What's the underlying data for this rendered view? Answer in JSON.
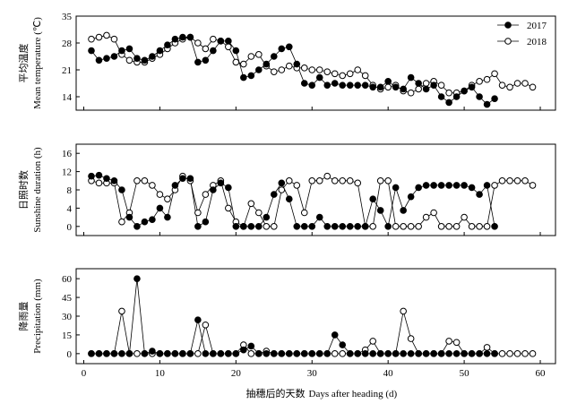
{
  "colors": {
    "ink": "#000000",
    "background": "#ffffff",
    "hollow": "#ffffff"
  },
  "chart_data": [
    {
      "type": "line",
      "ylabel_cn": "平均温度",
      "ylabel": "Mean temperature (℃)",
      "xlim": [
        -1,
        62
      ],
      "ylim": [
        10.5,
        35
      ],
      "xticks": [
        0,
        10,
        20,
        30,
        40,
        50,
        60
      ],
      "yticks": [
        14,
        21,
        28,
        35
      ],
      "legend": "top-right",
      "series": [
        {
          "name": "2017",
          "marker": "filled",
          "x": [
            1,
            2,
            3,
            4,
            5,
            6,
            7,
            8,
            9,
            10,
            11,
            12,
            13,
            14,
            15,
            16,
            17,
            18,
            19,
            20,
            21,
            22,
            23,
            24,
            25,
            26,
            27,
            28,
            29,
            30,
            31,
            32,
            33,
            34,
            35,
            36,
            37,
            38,
            39,
            40,
            41,
            42,
            43,
            44,
            45,
            46,
            47,
            48,
            49,
            50,
            51,
            52,
            53,
            54
          ],
          "y": [
            26,
            23.5,
            24,
            24.5,
            26,
            26.5,
            24,
            23.5,
            24.5,
            26,
            27.5,
            29,
            29.5,
            29.5,
            23,
            23.5,
            26,
            28.5,
            28.5,
            26,
            19,
            19.5,
            21,
            22.5,
            24.5,
            26.5,
            27,
            22.5,
            17.5,
            17,
            19,
            17,
            17.5,
            17,
            17,
            17,
            17,
            16.5,
            16.5,
            18,
            16.5,
            16,
            19,
            17.5,
            16,
            17,
            14,
            12.5,
            14,
            15.5,
            16.5,
            14,
            12,
            13.5
          ]
        },
        {
          "name": "2018",
          "marker": "hollow",
          "x": [
            1,
            2,
            3,
            4,
            5,
            6,
            7,
            8,
            9,
            10,
            11,
            12,
            13,
            14,
            15,
            16,
            17,
            18,
            19,
            20,
            21,
            22,
            23,
            24,
            25,
            26,
            27,
            28,
            29,
            30,
            31,
            32,
            33,
            34,
            35,
            36,
            37,
            38,
            39,
            40,
            41,
            42,
            43,
            44,
            45,
            46,
            47,
            48,
            49,
            50,
            51,
            52,
            53,
            54,
            55,
            56,
            57,
            58,
            59
          ],
          "y": [
            29,
            29.5,
            30,
            29,
            25,
            23.5,
            23,
            23,
            24,
            25,
            26.5,
            28,
            29,
            29.5,
            28,
            26.5,
            29,
            28.5,
            27,
            23,
            22.5,
            24.5,
            25,
            22,
            20.5,
            21,
            22,
            21.5,
            21.5,
            21,
            21,
            20.5,
            20,
            19.5,
            20,
            21,
            19.5,
            17,
            16,
            16.5,
            17,
            15.5,
            15,
            16,
            17.5,
            18,
            17,
            15,
            15,
            15.5,
            17,
            18,
            18.5,
            20,
            17,
            16.5,
            17.5,
            17.5,
            16.5
          ]
        }
      ]
    },
    {
      "type": "line",
      "ylabel_cn": "日照时数",
      "ylabel": "Sunshine duration (h)",
      "xlim": [
        -1,
        62
      ],
      "ylim": [
        -2,
        18
      ],
      "xticks": [
        0,
        10,
        20,
        30,
        40,
        50,
        60
      ],
      "yticks": [
        0,
        4,
        8,
        12,
        16
      ],
      "series": [
        {
          "name": "2017",
          "marker": "filled",
          "x": [
            1,
            2,
            3,
            4,
            5,
            6,
            7,
            8,
            9,
            10,
            11,
            12,
            13,
            14,
            15,
            16,
            17,
            18,
            19,
            20,
            21,
            22,
            23,
            24,
            25,
            26,
            27,
            28,
            29,
            30,
            31,
            32,
            33,
            34,
            35,
            36,
            37,
            38,
            39,
            40,
            41,
            42,
            43,
            44,
            45,
            46,
            47,
            48,
            49,
            50,
            51,
            52,
            53,
            54
          ],
          "y": [
            11,
            11.2,
            10.5,
            10,
            8,
            2,
            0,
            1,
            1.5,
            4,
            2,
            9,
            10.5,
            10.5,
            0,
            1,
            8,
            9.5,
            8.5,
            0,
            0,
            0,
            0,
            2,
            7,
            9.5,
            6,
            0,
            0,
            0,
            2,
            0,
            0,
            0,
            0,
            0,
            0,
            6,
            3.5,
            0,
            8.5,
            3.5,
            6.5,
            8.5,
            9,
            9,
            9,
            9,
            9,
            9,
            8.5,
            7,
            9,
            0
          ]
        },
        {
          "name": "2018",
          "marker": "hollow",
          "x": [
            1,
            2,
            3,
            4,
            5,
            6,
            7,
            8,
            9,
            10,
            11,
            12,
            13,
            14,
            15,
            16,
            17,
            18,
            19,
            20,
            21,
            22,
            23,
            24,
            25,
            26,
            27,
            28,
            29,
            30,
            31,
            32,
            33,
            34,
            35,
            36,
            37,
            38,
            39,
            40,
            41,
            42,
            43,
            44,
            45,
            46,
            47,
            48,
            49,
            50,
            51,
            52,
            53,
            54,
            55,
            56,
            57,
            58,
            59
          ],
          "y": [
            10,
            9.5,
            9.5,
            9.5,
            1,
            3,
            10,
            10,
            9,
            7,
            6,
            8,
            11,
            10,
            3,
            7,
            9,
            10,
            4,
            1,
            0,
            5,
            3,
            0,
            0,
            8,
            10,
            9,
            3,
            10,
            10,
            11,
            10,
            10,
            10,
            9.5,
            0,
            0,
            10,
            10,
            0,
            0,
            0,
            0,
            2,
            3,
            0,
            0,
            0,
            2,
            0,
            0,
            0,
            9,
            10,
            10,
            10,
            10,
            9
          ]
        }
      ]
    },
    {
      "type": "line",
      "ylabel_cn": "降雨量",
      "ylabel": "Precipitation (mm)",
      "xlabel_cn": "抽穗后的天数",
      "xlabel": "Days after heading (d)",
      "xlim": [
        -1,
        62
      ],
      "ylim": [
        -8,
        68
      ],
      "xticks": [
        0,
        10,
        20,
        30,
        40,
        50,
        60
      ],
      "xtick_labels": [
        "0",
        "10",
        "20",
        "30",
        "40",
        "50",
        "60"
      ],
      "yticks": [
        0,
        15,
        30,
        45,
        60
      ],
      "series": [
        {
          "name": "2017",
          "marker": "filled",
          "x": [
            1,
            2,
            3,
            4,
            5,
            6,
            7,
            8,
            9,
            10,
            11,
            12,
            13,
            14,
            15,
            16,
            17,
            18,
            19,
            20,
            21,
            22,
            23,
            24,
            25,
            26,
            27,
            28,
            29,
            30,
            31,
            32,
            33,
            34,
            35,
            36,
            37,
            38,
            39,
            40,
            41,
            42,
            43,
            44,
            45,
            46,
            47,
            48,
            49,
            50,
            51,
            52,
            53,
            54
          ],
          "y": [
            0,
            0,
            0,
            0,
            0,
            0,
            60,
            0,
            2,
            0,
            0,
            0,
            0,
            0,
            27,
            0,
            0,
            0,
            0,
            0,
            3,
            6,
            0,
            0,
            0,
            0,
            0,
            0,
            0,
            0,
            0,
            0,
            15,
            7,
            0,
            0,
            0,
            0,
            0,
            0,
            0,
            0,
            0,
            0,
            0,
            0,
            0,
            0,
            0,
            0,
            0,
            0,
            0,
            0
          ]
        },
        {
          "name": "2018",
          "marker": "hollow",
          "x": [
            1,
            2,
            3,
            4,
            5,
            6,
            7,
            8,
            9,
            10,
            11,
            12,
            13,
            14,
            15,
            16,
            17,
            18,
            19,
            20,
            21,
            22,
            23,
            24,
            25,
            26,
            27,
            28,
            29,
            30,
            31,
            32,
            33,
            34,
            35,
            36,
            37,
            38,
            39,
            40,
            41,
            42,
            43,
            44,
            45,
            46,
            47,
            48,
            49,
            50,
            51,
            52,
            53,
            54,
            55,
            56,
            57,
            58,
            59
          ],
          "y": [
            0,
            0,
            0,
            0,
            34,
            0,
            0,
            0,
            0,
            0,
            0,
            0,
            0,
            0,
            0,
            23,
            0,
            0,
            0,
            0,
            7,
            0,
            0,
            2,
            0,
            0,
            0,
            0,
            0,
            0,
            0,
            0,
            0,
            0,
            0,
            0,
            3,
            10,
            0,
            0,
            0,
            34,
            12,
            0,
            0,
            0,
            0,
            10,
            9,
            0,
            0,
            0,
            5,
            0,
            0,
            0,
            0,
            0,
            0
          ]
        }
      ]
    }
  ]
}
